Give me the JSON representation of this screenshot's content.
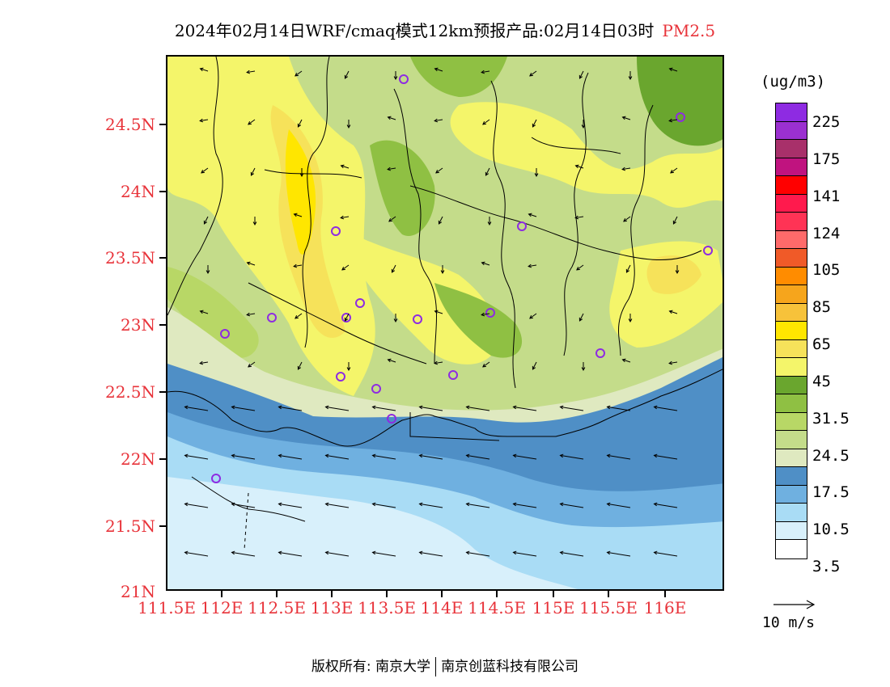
{
  "title": {
    "text": "2024年02月14日WRF/cmaq模式12km预报产品:02月14日03时",
    "pollutant": "PM2.5",
    "pollutant_color": "#e8333a"
  },
  "axes": {
    "lat_labels": [
      "24.5N",
      "24N",
      "23.5N",
      "23N",
      "22.5N",
      "22N",
      "21.5N",
      "21N"
    ],
    "lat_values": [
      24.5,
      24.0,
      23.5,
      23.0,
      22.5,
      22.0,
      21.5,
      21.0
    ],
    "lon_labels": [
      "111.5E",
      "112E",
      "112.5E",
      "113E",
      "113.5E",
      "114E",
      "114.5E",
      "115E",
      "115.5E",
      "116E"
    ],
    "lon_values": [
      111.5,
      112.0,
      112.5,
      113.0,
      113.5,
      114.0,
      114.5,
      115.0,
      115.5,
      116.0
    ],
    "lat_range": [
      21.0,
      25.0
    ],
    "lon_range": [
      111.5,
      116.7
    ],
    "label_color": "#e8333a"
  },
  "colorbar": {
    "unit": "(ug/m3)",
    "colors_top_to_bottom": [
      "#8e2be2",
      "#9b30d0",
      "#a8306a",
      "#c0137f",
      "#ff0000",
      "#ff1a4d",
      "#ff3355",
      "#ff6a6a",
      "#f05a28",
      "#ff8c00",
      "#f6a51c",
      "#f7c23a",
      "#ffe600",
      "#f6e25a",
      "#f4f56a",
      "#6aa62e",
      "#8fc043",
      "#b8d766",
      "#c4dc8a",
      "#dfe9c0",
      "#4f8fc6",
      "#6fb0e0",
      "#a9dcf5",
      "#d8f0fb",
      "#ffffff"
    ],
    "labels": [
      "225",
      "175",
      "141",
      "124",
      "105",
      "85",
      "65",
      "45",
      "31.5",
      "24.5",
      "17.5",
      "10.5",
      "3.5"
    ]
  },
  "wind": {
    "reference_label": "10 m/s"
  },
  "footer": {
    "left": "版权所有: 南京大学",
    "right": "南京创蓝科技有限公司"
  }
}
